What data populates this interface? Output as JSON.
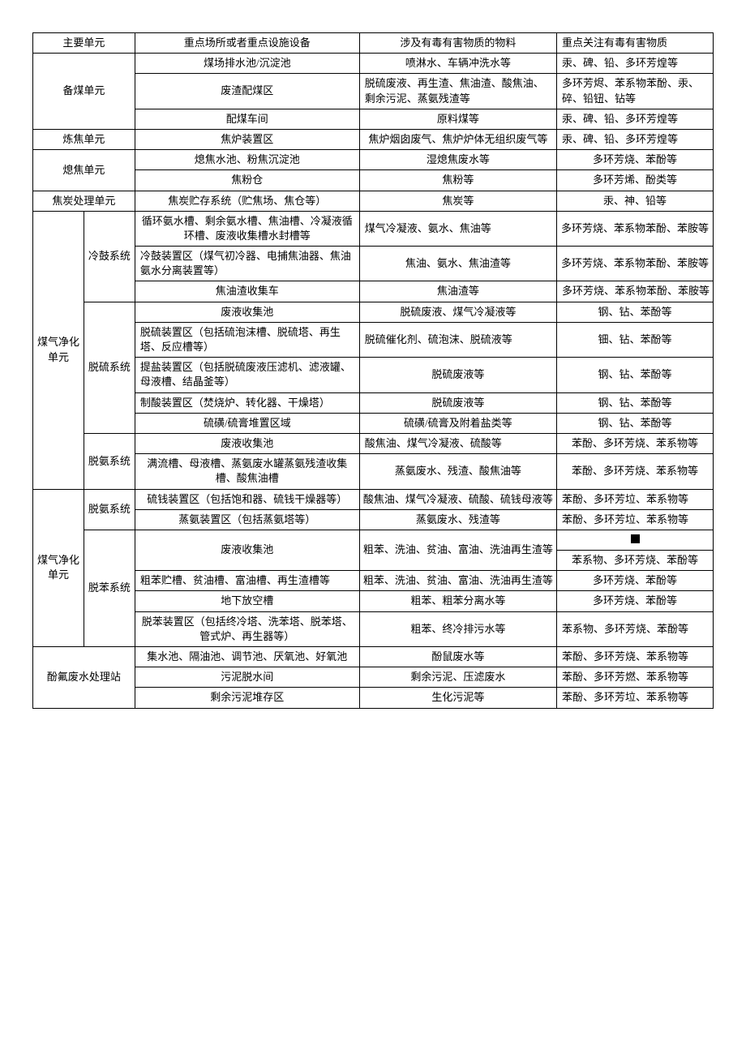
{
  "header": {
    "col1": "主要单元",
    "col2": "重点场所或者重点设施设备",
    "col3": "涉及有毒有害物质的物料",
    "col4": "重点关注有毒有害物质"
  },
  "r1": {
    "unit": "备煤单元",
    "place": "煤场排水池/沉淀池",
    "material": "喷淋水、车辆冲洗水等",
    "sub": "汞、碑、铅、多环芳煌等"
  },
  "r2": {
    "place": "废渣配煤区",
    "material": "脱硫废液、再生渣、焦油渣、酸焦油、剩余污泥、蒸氨残渣等",
    "sub": "多环芳烬、苯系物苯酚、汞、碎、铅钮、钻等"
  },
  "r3": {
    "place": "配煤车间",
    "material": "原料煤等",
    "sub": "汞、碑、铅、多环芳煌等"
  },
  "r4": {
    "unit": "炼焦单元",
    "place": "焦炉装置区",
    "material": "焦炉烟囱废气、焦炉炉体无组织废气等",
    "sub": "汞、碑、铅、多环芳煌等"
  },
  "r5": {
    "unit": "熄焦单元",
    "place": "熄焦水池、粉焦沉淀池",
    "material": "湿熄焦废水等",
    "sub": "多环芳烧、苯酚等"
  },
  "r6": {
    "place": "焦粉仓",
    "material": "焦粉等",
    "sub": "多环芳烯、酚类等"
  },
  "r7": {
    "unit": "焦炭处理单元",
    "place": "焦炭贮存系统（贮焦场、焦仓等）",
    "material": "焦炭等",
    "sub": "汞、神、铅等"
  },
  "r8": {
    "unit": "煤气净化单元",
    "sys": "冷鼓系统",
    "place": "循环氨水槽、剩余氨水槽、焦油槽、冷凝液循环槽、废液收集槽水封槽等",
    "material": "煤气冷凝液、氨水、焦油等",
    "sub": "多环芳烧、苯系物苯酚、苯胺等"
  },
  "r9": {
    "place": "冷鼓装置区（煤气初冷器、电捕焦油器、焦油氨水分离装置等）",
    "material": "焦油、氨水、焦油渣等",
    "sub": "多环芳烧、苯系物苯酚、苯胺等"
  },
  "r10": {
    "place": "焦油渣收集车",
    "material": "焦油渣等",
    "sub": "多环芳烧、苯系物苯酚、苯胺等"
  },
  "r11": {
    "sys": "脱硫系统",
    "place": "废液收集池",
    "material": "脱硫废液、煤气冷凝液等",
    "sub": "钢、钻、苯酚等"
  },
  "r12": {
    "place": "脱硫装置区（包括硫泡沫槽、脱硫塔、再生塔、反应槽等）",
    "material": "脱硫催化剂、硫泡沫、脱硫液等",
    "sub": "钿、钻、苯酚等"
  },
  "r13": {
    "place": "提盐装置区（包括脱硫废液压滤机、滤液罐、母液槽、结晶釜等）",
    "material": "脱硫废液等",
    "sub": "钢、钻、苯酚等"
  },
  "r14": {
    "place": "制酸装置区（焚烧炉、转化器、干燥塔）",
    "material": "脱硫废液等",
    "sub": "钢、钻、苯酚等"
  },
  "r15": {
    "place": "硫磺/硫膏堆置区域",
    "material": "硫磺/硫膏及附着盐类等",
    "sub": "钢、钻、苯酚等"
  },
  "r16": {
    "sys": "脱氨系统",
    "place": "废液收集池",
    "material": "酸焦油、煤气冷凝液、硫酸等",
    "sub": "苯酚、多环芳烧、苯系物等"
  },
  "r17": {
    "place": "满流槽、母液槽、蒸氨废水罐蒸氨残渣收集槽、酸焦油槽",
    "material": "蒸氨废水、残渣、酸焦油等",
    "sub": "苯酚、多环芳烧、苯系物等"
  },
  "r18": {
    "unit": "煤气净化单元",
    "sys": "脱氨系统",
    "place": "硫钱装置区（包括饱和器、硫钱干燥器等）",
    "material": "酸焦油、煤气冷凝液、硫酸、硫钱母液等",
    "sub": "苯酚、多环芳垃、苯系物等"
  },
  "r19": {
    "place": "蒸氨装置区（包括蒸氨塔等）",
    "material": "蒸氨废水、残渣等",
    "sub": "苯酚、多环芳垃、苯系物等"
  },
  "r20": {
    "sys": "脱苯系统",
    "place": "废液收集池",
    "material": "粗苯、洗油、贫油、富油、洗油再生渣等",
    "sub2": "苯系物、多环芳烧、苯酚等"
  },
  "r21": {
    "place": "粗苯贮槽、贫油槽、富油槽、再生渣槽等",
    "material": "粗苯、洗油、贫油、富油、洗油再生渣等",
    "sub": "多环芳烧、苯酚等"
  },
  "r22": {
    "place": "地下放空槽",
    "material": "粗苯、粗苯分离水等",
    "sub": "多环芳烧、苯酚等"
  },
  "r23": {
    "place": "脱苯装置区（包括终冷塔、洗苯塔、脱苯塔、管式炉、再生器等）",
    "material": "粗苯、终冷排污水等",
    "sub": "苯系物、多环芳烧、苯酚等"
  },
  "r24": {
    "unit": "酚氟废水处理站",
    "place": "集水池、隔油池、调节池、厌氧池、好氧池",
    "material": "酚鼠废水等",
    "sub": "苯酚、多环芳烧、苯系物等"
  },
  "r25": {
    "place": "污泥脱水间",
    "material": "剩余污泥、压滤废水",
    "sub": "苯酚、多环芳燃、苯系物等"
  },
  "r26": {
    "place": "剩余污泥堆存区",
    "material": "生化污泥等",
    "sub": "苯酚、多环芳垃、苯系物等"
  }
}
